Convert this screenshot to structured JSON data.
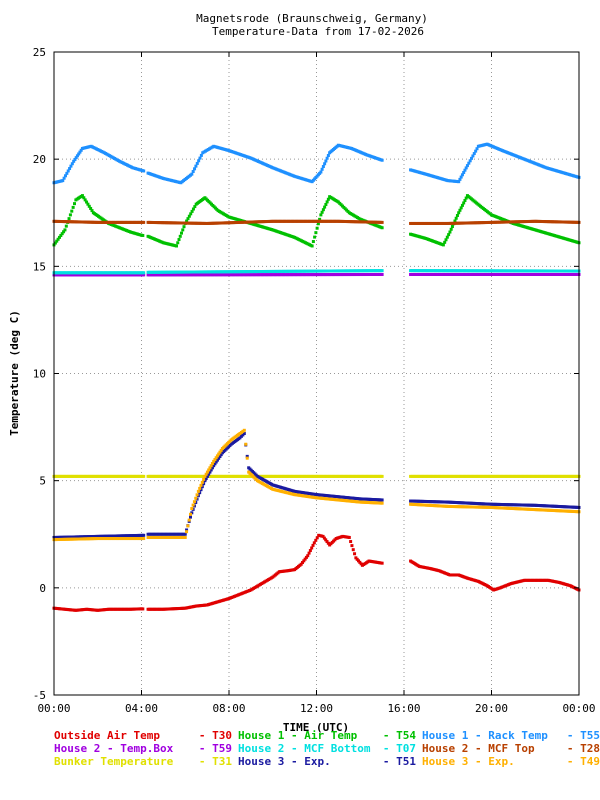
{
  "chart_data": {
    "type": "scatter",
    "title": [
      "Magnetsrode (Braunschweig, Germany)",
      "Temperature-Data from 17-02-2026"
    ],
    "xlabel": "TIME (UTC)",
    "ylabel": "Temperature (deg C)",
    "xlim": [
      0,
      24
    ],
    "ylim": [
      -5,
      25
    ],
    "grid": true,
    "x_ticks": [
      {
        "value": 0,
        "label": "00:00"
      },
      {
        "value": 4,
        "label": "04:00"
      },
      {
        "value": 8,
        "label": "08:00"
      },
      {
        "value": 12,
        "label": "12:00"
      },
      {
        "value": 16,
        "label": "16:00"
      },
      {
        "value": 20,
        "label": "20:00"
      },
      {
        "value": 24,
        "label": "00:00"
      }
    ],
    "y_ticks": [
      {
        "value": -5,
        "label": "-5"
      },
      {
        "value": 0,
        "label": "0"
      },
      {
        "value": 5,
        "label": "5"
      },
      {
        "value": 10,
        "label": "10"
      },
      {
        "value": 15,
        "label": "15"
      },
      {
        "value": 20,
        "label": "20"
      },
      {
        "value": 25,
        "label": "25"
      }
    ],
    "gaps_hours": [
      [
        4.1,
        4.3
      ],
      [
        15,
        16.3
      ]
    ],
    "legend_placement": "bottom",
    "series": [
      {
        "name": "Outside Air Temp",
        "sensor": "T30",
        "color": "#e00000",
        "points": [
          [
            0,
            -0.95
          ],
          [
            0.5,
            -1.0
          ],
          [
            1,
            -1.05
          ],
          [
            1.5,
            -1.0
          ],
          [
            2,
            -1.05
          ],
          [
            2.5,
            -1.0
          ],
          [
            3,
            -1.0
          ],
          [
            3.5,
            -1.0
          ],
          [
            4,
            -0.98
          ],
          [
            4.3,
            -1.0
          ],
          [
            5,
            -1.0
          ],
          [
            6,
            -0.95
          ],
          [
            6.5,
            -0.85
          ],
          [
            7,
            -0.8
          ],
          [
            7.5,
            -0.65
          ],
          [
            8,
            -0.5
          ],
          [
            8.5,
            -0.3
          ],
          [
            9,
            -0.1
          ],
          [
            9.5,
            0.2
          ],
          [
            10,
            0.5
          ],
          [
            10.3,
            0.75
          ],
          [
            10.7,
            0.8
          ],
          [
            11,
            0.85
          ],
          [
            11.3,
            1.1
          ],
          [
            11.6,
            1.5
          ],
          [
            11.9,
            2.1
          ],
          [
            12.1,
            2.45
          ],
          [
            12.3,
            2.4
          ],
          [
            12.6,
            2.0
          ],
          [
            12.9,
            2.3
          ],
          [
            13.2,
            2.4
          ],
          [
            13.5,
            2.35
          ],
          [
            13.8,
            1.4
          ],
          [
            14.1,
            1.05
          ],
          [
            14.4,
            1.25
          ],
          [
            14.7,
            1.2
          ],
          [
            15,
            1.15
          ],
          [
            16.3,
            1.25
          ],
          [
            16.7,
            1.0
          ],
          [
            17.2,
            0.9
          ],
          [
            17.6,
            0.8
          ],
          [
            18.1,
            0.6
          ],
          [
            18.5,
            0.6
          ],
          [
            18.9,
            0.45
          ],
          [
            19.4,
            0.3
          ],
          [
            19.8,
            0.1
          ],
          [
            20.1,
            -0.1
          ],
          [
            20.4,
            0.0
          ],
          [
            20.9,
            0.2
          ],
          [
            21.5,
            0.35
          ],
          [
            22,
            0.35
          ],
          [
            22.6,
            0.35
          ],
          [
            23.1,
            0.25
          ],
          [
            23.6,
            0.1
          ],
          [
            24,
            -0.1
          ]
        ]
      },
      {
        "name": "House 1 - Air  Temp",
        "sensor": "T54",
        "color": "#00c000",
        "points": [
          [
            0,
            16.0
          ],
          [
            0.5,
            16.7
          ],
          [
            1,
            18.1
          ],
          [
            1.3,
            18.3
          ],
          [
            1.8,
            17.5
          ],
          [
            2.5,
            17.0
          ],
          [
            3,
            16.8
          ],
          [
            3.5,
            16.6
          ],
          [
            4,
            16.45
          ],
          [
            4.3,
            16.4
          ],
          [
            5,
            16.1
          ],
          [
            5.6,
            15.95
          ],
          [
            6,
            17.0
          ],
          [
            6.5,
            17.9
          ],
          [
            6.9,
            18.2
          ],
          [
            7.5,
            17.6
          ],
          [
            8,
            17.3
          ],
          [
            9,
            17.0
          ],
          [
            10,
            16.7
          ],
          [
            11,
            16.35
          ],
          [
            11.8,
            15.95
          ],
          [
            12.2,
            17.4
          ],
          [
            12.6,
            18.25
          ],
          [
            13,
            18.0
          ],
          [
            13.5,
            17.5
          ],
          [
            14,
            17.2
          ],
          [
            15,
            16.8
          ],
          [
            16.3,
            16.5
          ],
          [
            17,
            16.3
          ],
          [
            17.8,
            16.0
          ],
          [
            18.1,
            16.6
          ],
          [
            18.5,
            17.5
          ],
          [
            18.9,
            18.3
          ],
          [
            19.5,
            17.8
          ],
          [
            20,
            17.4
          ],
          [
            21,
            17.0
          ],
          [
            22,
            16.7
          ],
          [
            23,
            16.4
          ],
          [
            24,
            16.1
          ]
        ]
      },
      {
        "name": "House 1 - Rack Temp",
        "sensor": "T55",
        "color": "#1e90ff",
        "points": [
          [
            0,
            18.9
          ],
          [
            0.4,
            19.0
          ],
          [
            0.9,
            19.9
          ],
          [
            1.3,
            20.5
          ],
          [
            1.7,
            20.6
          ],
          [
            2.3,
            20.3
          ],
          [
            3,
            19.9
          ],
          [
            3.6,
            19.6
          ],
          [
            4.1,
            19.45
          ],
          [
            4.3,
            19.35
          ],
          [
            5,
            19.1
          ],
          [
            5.8,
            18.9
          ],
          [
            6.3,
            19.3
          ],
          [
            6.8,
            20.3
          ],
          [
            7.3,
            20.6
          ],
          [
            8,
            20.4
          ],
          [
            9,
            20.05
          ],
          [
            10,
            19.6
          ],
          [
            11,
            19.2
          ],
          [
            11.8,
            18.95
          ],
          [
            12.2,
            19.4
          ],
          [
            12.6,
            20.3
          ],
          [
            13,
            20.65
          ],
          [
            13.6,
            20.5
          ],
          [
            14.3,
            20.2
          ],
          [
            15,
            19.95
          ],
          [
            16.3,
            19.5
          ],
          [
            17,
            19.3
          ],
          [
            18,
            19.0
          ],
          [
            18.5,
            18.95
          ],
          [
            18.9,
            19.7
          ],
          [
            19.4,
            20.6
          ],
          [
            19.8,
            20.7
          ],
          [
            20.5,
            20.4
          ],
          [
            21.5,
            20.0
          ],
          [
            22.5,
            19.6
          ],
          [
            23.5,
            19.3
          ],
          [
            24,
            19.15
          ]
        ]
      },
      {
        "name": "House 2 - Temp.Box",
        "sensor": "T59",
        "color": "#a000e0",
        "points": [
          [
            0,
            14.6
          ],
          [
            4.1,
            14.6
          ],
          [
            4.3,
            14.6
          ],
          [
            15,
            14.62
          ],
          [
            16.3,
            14.62
          ],
          [
            24,
            14.62
          ]
        ]
      },
      {
        "name": "House 2 - MCF Bottom",
        "sensor": "T07",
        "color": "#00e0e0",
        "points": [
          [
            0,
            14.7
          ],
          [
            4.1,
            14.7
          ],
          [
            4.3,
            14.72
          ],
          [
            15,
            14.8
          ],
          [
            16.3,
            14.8
          ],
          [
            24,
            14.78
          ]
        ]
      },
      {
        "name": "House 2 - MCF Top",
        "sensor": "T28",
        "color": "#b84000",
        "points": [
          [
            0,
            17.1
          ],
          [
            2,
            17.05
          ],
          [
            4.1,
            17.05
          ],
          [
            4.3,
            17.05
          ],
          [
            7,
            17.0
          ],
          [
            10,
            17.1
          ],
          [
            13,
            17.1
          ],
          [
            15,
            17.05
          ],
          [
            16.3,
            17.0
          ],
          [
            18,
            17.0
          ],
          [
            20,
            17.05
          ],
          [
            22,
            17.1
          ],
          [
            24,
            17.05
          ]
        ]
      },
      {
        "name": "Bunker Temperature",
        "sensor": "T31",
        "color": "#e0e000",
        "points": [
          [
            0,
            5.2
          ],
          [
            4.1,
            5.2
          ],
          [
            4.3,
            5.2
          ],
          [
            15,
            5.2
          ],
          [
            16.3,
            5.2
          ],
          [
            24,
            5.2
          ]
        ]
      },
      {
        "name": "House 3 - Exp.",
        "sensor": "T51",
        "color": "#1a1aa0",
        "points": [
          [
            0,
            2.35
          ],
          [
            2,
            2.4
          ],
          [
            4.1,
            2.45
          ],
          [
            4.3,
            2.5
          ],
          [
            6,
            2.5
          ],
          [
            6.3,
            3.5
          ],
          [
            6.6,
            4.3
          ],
          [
            6.9,
            5.0
          ],
          [
            7.3,
            5.7
          ],
          [
            7.7,
            6.3
          ],
          [
            8.1,
            6.7
          ],
          [
            8.5,
            7.0
          ],
          [
            8.7,
            7.2
          ],
          [
            8.9,
            5.6
          ],
          [
            9.3,
            5.2
          ],
          [
            10,
            4.8
          ],
          [
            11,
            4.5
          ],
          [
            12,
            4.35
          ],
          [
            13,
            4.25
          ],
          [
            14,
            4.15
          ],
          [
            15,
            4.1
          ],
          [
            16.3,
            4.05
          ],
          [
            18,
            4.0
          ],
          [
            20,
            3.9
          ],
          [
            22,
            3.85
          ],
          [
            24,
            3.75
          ]
        ]
      },
      {
        "name": "House 3 - Exp.",
        "sensor": "T49",
        "color": "#ffb000",
        "points": [
          [
            0,
            2.25
          ],
          [
            2,
            2.3
          ],
          [
            4.1,
            2.3
          ],
          [
            4.3,
            2.35
          ],
          [
            6,
            2.35
          ],
          [
            6.3,
            3.7
          ],
          [
            6.6,
            4.5
          ],
          [
            6.9,
            5.2
          ],
          [
            7.3,
            5.9
          ],
          [
            7.7,
            6.5
          ],
          [
            8.1,
            6.9
          ],
          [
            8.5,
            7.2
          ],
          [
            8.7,
            7.35
          ],
          [
            8.9,
            5.4
          ],
          [
            9.3,
            5.0
          ],
          [
            10,
            4.6
          ],
          [
            11,
            4.35
          ],
          [
            12,
            4.2
          ],
          [
            13,
            4.1
          ],
          [
            14,
            4.0
          ],
          [
            15,
            3.95
          ],
          [
            16.3,
            3.9
          ],
          [
            18,
            3.8
          ],
          [
            20,
            3.75
          ],
          [
            22,
            3.65
          ],
          [
            24,
            3.55
          ]
        ]
      }
    ]
  }
}
